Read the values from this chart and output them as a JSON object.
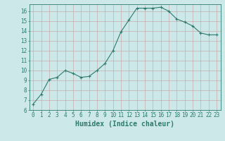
{
  "x": [
    0,
    1,
    2,
    3,
    4,
    5,
    6,
    7,
    8,
    9,
    10,
    11,
    12,
    13,
    14,
    15,
    16,
    17,
    18,
    19,
    20,
    21,
    22,
    23
  ],
  "y": [
    6.6,
    7.6,
    9.1,
    9.3,
    10.0,
    9.7,
    9.3,
    9.4,
    10.0,
    10.7,
    12.0,
    13.9,
    15.1,
    16.3,
    16.3,
    16.3,
    16.4,
    16.0,
    15.2,
    14.9,
    14.5,
    13.8,
    13.6,
    13.6
  ],
  "xlabel": "Humidex (Indice chaleur)",
  "ylim": [
    6,
    16.7
  ],
  "xlim": [
    -0.5,
    23.5
  ],
  "yticks": [
    6,
    7,
    8,
    9,
    10,
    11,
    12,
    13,
    14,
    15,
    16
  ],
  "xticks": [
    0,
    1,
    2,
    3,
    4,
    5,
    6,
    7,
    8,
    9,
    10,
    11,
    12,
    13,
    14,
    15,
    16,
    17,
    18,
    19,
    20,
    21,
    22,
    23
  ],
  "line_color": "#2d7a6e",
  "marker_color": "#2d7a6e",
  "bg_color": "#cce8e8",
  "grid_color": "#b8d4d4",
  "axis_color": "#2d7a6e",
  "tick_label_color": "#2d7a6e",
  "xlabel_color": "#2d7a6e",
  "font_size_ticks": 5.5,
  "font_size_xlabel": 7.0
}
